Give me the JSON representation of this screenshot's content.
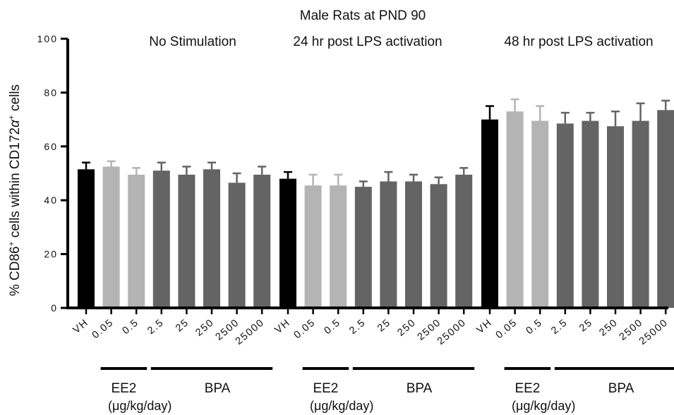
{
  "chart_data": {
    "type": "bar",
    "title": "Male Rats at PND 90",
    "ylabel_parts": [
      "% CD86",
      "+",
      " cells within CD172",
      "α",
      "+",
      " cells"
    ],
    "ylim": [
      0,
      100
    ],
    "yticks": [
      "0",
      "20",
      "40",
      "60",
      "80",
      "100"
    ],
    "categories": [
      "VH",
      "0.05",
      "0.5",
      "2.5",
      "25",
      "250",
      "2500",
      "25000"
    ],
    "colors": {
      "VH": "#000000",
      "EE2": "#b4b4b4",
      "BPA": "#646464"
    },
    "groups": [
      {
        "title": "No Stimulation",
        "values": [
          51.5,
          52.5,
          49.5,
          51,
          49.5,
          51.5,
          46.5,
          49.5
        ],
        "errors": [
          2.5,
          2.0,
          2.5,
          3.0,
          3.0,
          2.5,
          3.5,
          3.0
        ]
      },
      {
        "title": "24 hr post LPS activation",
        "values": [
          48,
          45.5,
          45.5,
          45,
          47,
          47,
          46,
          49.5
        ],
        "errors": [
          2.5,
          4.0,
          4.0,
          2.0,
          3.5,
          2.5,
          2.5,
          2.5
        ]
      },
      {
        "title": "48 hr post LPS activation",
        "values": [
          70,
          73,
          69.5,
          68.5,
          69.5,
          67.5,
          69.5,
          73.5
        ],
        "errors": [
          5.0,
          4.5,
          5.5,
          4.0,
          3.0,
          5.5,
          6.5,
          3.5
        ]
      }
    ],
    "brackets": {
      "ee2": "EE2",
      "bpa": "BPA",
      "units": "(μg/kg/day)"
    },
    "grid": false,
    "legend": "none"
  }
}
